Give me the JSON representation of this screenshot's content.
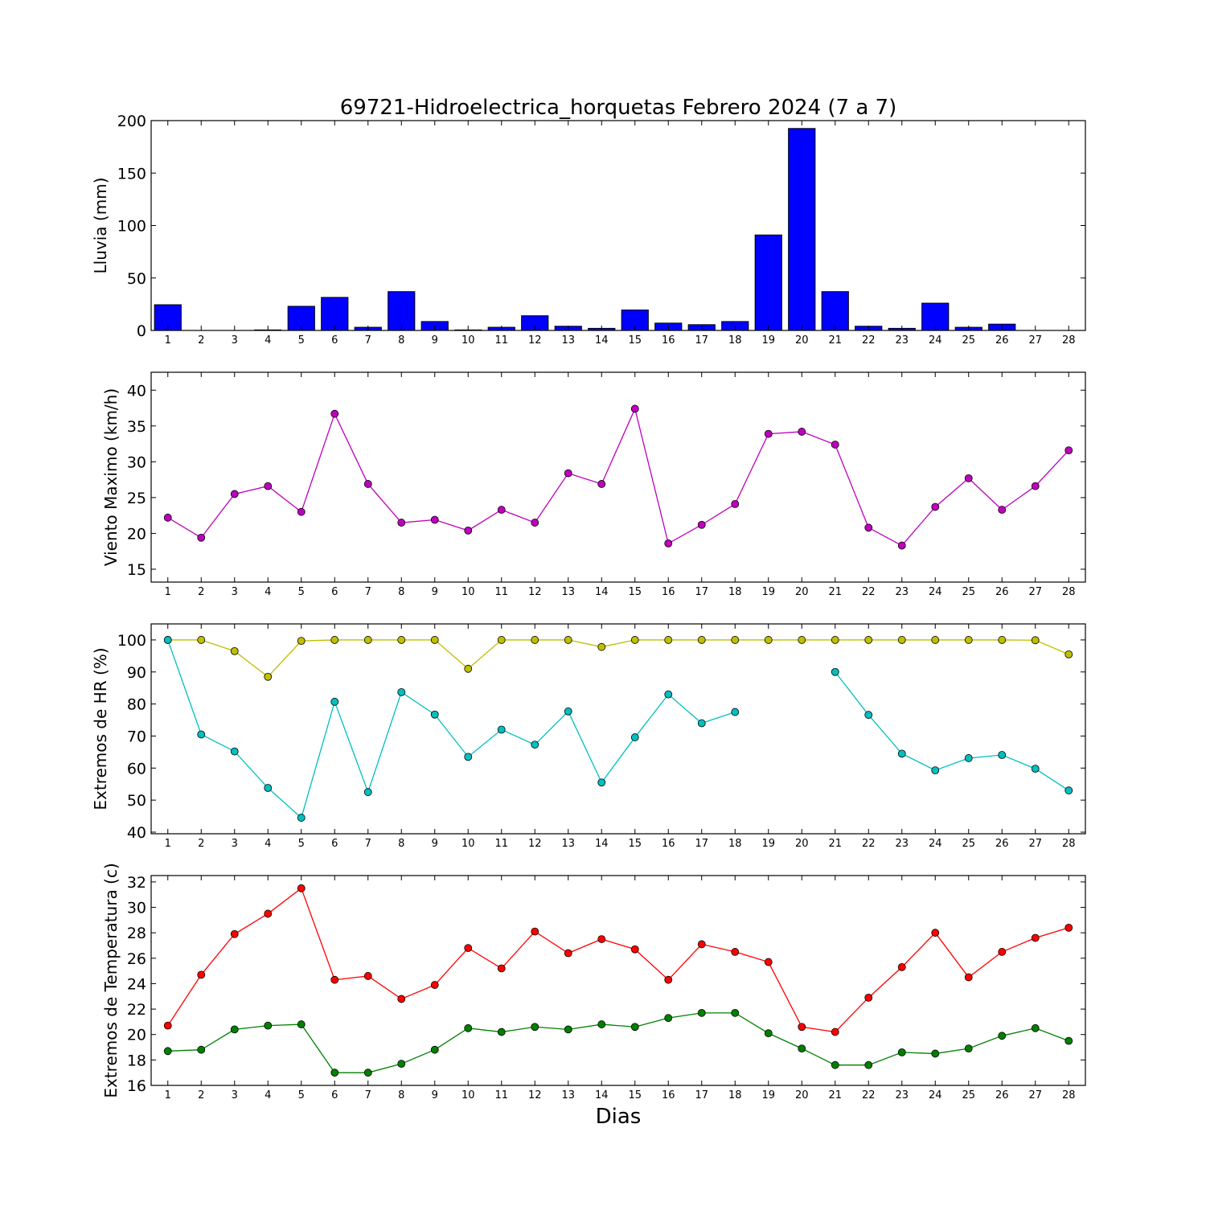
{
  "figure": {
    "title": "69721-Hidroelectrica_horquetas Febrero 2024  (7 a 7)",
    "xlabel": "Dias"
  },
  "chart_data": [
    {
      "type": "bar",
      "ylabel": "Lluvia (mm)",
      "x": [
        1,
        2,
        3,
        4,
        5,
        6,
        7,
        8,
        9,
        10,
        11,
        12,
        13,
        14,
        15,
        16,
        17,
        18,
        19,
        20,
        21,
        22,
        23,
        24,
        25,
        26,
        27,
        28
      ],
      "ylim": [
        0,
        200
      ],
      "yticks": [
        0,
        50,
        100,
        150,
        200
      ],
      "series": [
        {
          "color": "#0000ff",
          "values": [
            24.5,
            0,
            0,
            0.5,
            23,
            31.5,
            3,
            37,
            8.5,
            0.5,
            3,
            14,
            4,
            2,
            19.5,
            7,
            5.5,
            8.5,
            91,
            192.5,
            37,
            4,
            2,
            26,
            3,
            6,
            0,
            0
          ]
        }
      ]
    },
    {
      "type": "line",
      "ylabel": "Viento Maximo (km/h)",
      "x": [
        1,
        2,
        3,
        4,
        5,
        6,
        7,
        8,
        9,
        10,
        11,
        12,
        13,
        14,
        15,
        16,
        17,
        18,
        19,
        20,
        21,
        22,
        23,
        24,
        25,
        26,
        27,
        28
      ],
      "ylim": [
        13.2,
        42.5
      ],
      "yticks": [
        15,
        20,
        25,
        30,
        35,
        40
      ],
      "series": [
        {
          "color": "#bf00bf",
          "values": [
            22.2,
            19.4,
            25.5,
            26.6,
            23.0,
            36.7,
            26.9,
            21.5,
            21.9,
            20.4,
            23.3,
            21.5,
            28.4,
            26.9,
            37.4,
            18.6,
            21.2,
            24.1,
            33.9,
            34.2,
            32.4,
            20.8,
            18.3,
            23.7,
            27.7,
            23.3,
            26.6,
            31.6
          ]
        }
      ]
    },
    {
      "type": "line",
      "ylabel": "Extremos de HR (%)",
      "x": [
        1,
        2,
        3,
        4,
        5,
        6,
        7,
        8,
        9,
        10,
        11,
        12,
        13,
        14,
        15,
        16,
        17,
        18,
        19,
        20,
        21,
        22,
        23,
        24,
        25,
        26,
        27,
        28
      ],
      "ylim": [
        39.5,
        105
      ],
      "yticks": [
        40,
        50,
        60,
        70,
        80,
        90,
        100
      ],
      "series": [
        {
          "color": "#bfbf00",
          "values": [
            100,
            100,
            96.5,
            88.5,
            99.7,
            100,
            100,
            100,
            100,
            91,
            100,
            100,
            100,
            97.8,
            100,
            100,
            100,
            100,
            100,
            100,
            100,
            100,
            100,
            100,
            100,
            100,
            99.9,
            95.5
          ]
        },
        {
          "color": "#00bfbf",
          "values": [
            100,
            70.5,
            65.2,
            53.8,
            44.5,
            80.7,
            52.5,
            83.7,
            76.7,
            63.5,
            72,
            67.3,
            77.7,
            55.5,
            69.6,
            83,
            74,
            77.5,
            null,
            null,
            90,
            76.6,
            64.5,
            59.3,
            63.1,
            64.1,
            59.8,
            53
          ]
        }
      ]
    },
    {
      "type": "line",
      "ylabel": "Extremos de Temperatura (c)",
      "x": [
        1,
        2,
        3,
        4,
        5,
        6,
        7,
        8,
        9,
        10,
        11,
        12,
        13,
        14,
        15,
        16,
        17,
        18,
        19,
        20,
        21,
        22,
        23,
        24,
        25,
        26,
        27,
        28
      ],
      "ylim": [
        16,
        32.5
      ],
      "yticks": [
        16,
        18,
        20,
        22,
        24,
        26,
        28,
        30,
        32
      ],
      "series": [
        {
          "color": "#ff0000",
          "values": [
            20.7,
            24.7,
            27.9,
            29.5,
            31.5,
            24.3,
            24.6,
            22.8,
            23.9,
            26.8,
            25.2,
            28.1,
            26.4,
            27.5,
            26.7,
            24.3,
            27.1,
            26.5,
            25.7,
            20.6,
            20.2,
            22.9,
            25.3,
            28.0,
            24.5,
            26.5,
            27.6,
            28.4
          ]
        },
        {
          "color": "#008000",
          "values": [
            18.7,
            18.8,
            20.4,
            20.7,
            20.8,
            17.0,
            17.0,
            17.7,
            18.8,
            20.5,
            20.2,
            20.6,
            20.4,
            20.8,
            20.6,
            21.3,
            21.7,
            21.7,
            20.1,
            18.9,
            17.6,
            17.6,
            18.6,
            18.5,
            18.9,
            19.9,
            20.5,
            19.5
          ]
        }
      ]
    }
  ]
}
